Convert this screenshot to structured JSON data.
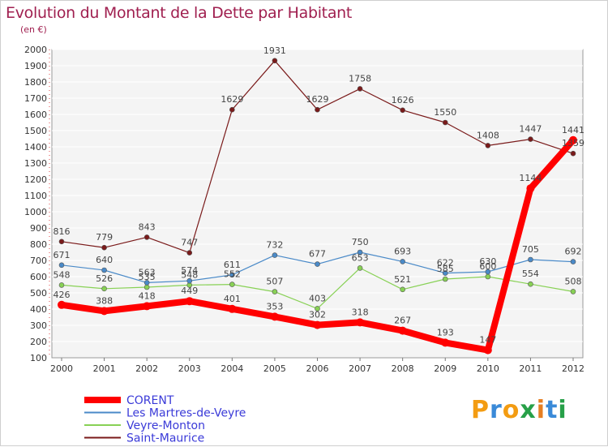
{
  "title": "Evolution du Montant de la Dette par Habitant",
  "subtitle": "(en €)",
  "logo": {
    "text": "Proxiti",
    "colors": [
      "#f39c12",
      "#3a8ad8",
      "#f39c12",
      "#27a048",
      "#e67e22",
      "#3a8ad8",
      "#27a048"
    ]
  },
  "chart_data": {
    "type": "line",
    "x": [
      "2000",
      "2001",
      "2002",
      "2003",
      "2004",
      "2005",
      "2006",
      "2007",
      "2008",
      "2009",
      "2010",
      "2011",
      "2012"
    ],
    "ylim": [
      100,
      2000
    ],
    "yticks": [
      100,
      200,
      300,
      400,
      500,
      600,
      700,
      800,
      900,
      1000,
      1100,
      1200,
      1300,
      1400,
      1500,
      1600,
      1700,
      1800,
      1900,
      2000
    ],
    "grid": "horizontal",
    "legend_position": "bottom-left",
    "series": [
      {
        "name": "CORENT",
        "color": "#ff0000",
        "values": [
          426,
          388,
          418,
          449,
          401,
          353,
          302,
          318,
          267,
          193,
          147,
          1144,
          1441
        ]
      },
      {
        "name": "Les Martres-de-Veyre",
        "color": "#4a8ac8",
        "values": [
          671,
          640,
          563,
          574,
          611,
          732,
          677,
          750,
          693,
          622,
          630,
          705,
          692
        ]
      },
      {
        "name": "Veyre-Monton",
        "color": "#88d155",
        "values": [
          548,
          526,
          535,
          548,
          552,
          507,
          403,
          653,
          521,
          585,
          600,
          554,
          508
        ]
      },
      {
        "name": "Saint-Maurice",
        "color": "#7a1a1a",
        "values": [
          816,
          779,
          843,
          747,
          1629,
          1931,
          1629,
          1758,
          1626,
          1550,
          1408,
          1447,
          1359
        ]
      }
    ]
  }
}
